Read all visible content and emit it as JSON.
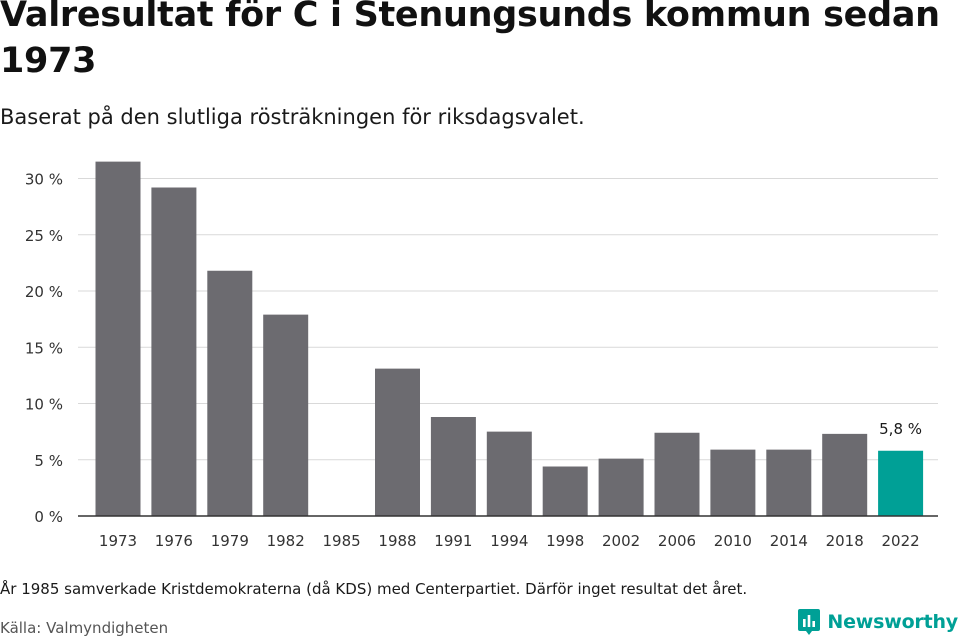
{
  "title": "Valresultat för C i Stenungsunds kommun sedan 1973",
  "subtitle": "Baserat på den slutliga rösträkningen för riksdagsvalet.",
  "note": "År 1985 samverkade Kristdemokraterna (då KDS) med Centerpartiet. Därför inget resultat det året.",
  "source": "Källa: Valmyndigheten",
  "brand": "Newsworthy",
  "chart_data": {
    "type": "bar",
    "categories": [
      "1973",
      "1976",
      "1979",
      "1982",
      "1985",
      "1988",
      "1991",
      "1994",
      "1998",
      "2002",
      "2006",
      "2010",
      "2014",
      "2018",
      "2022"
    ],
    "values": [
      31.5,
      29.2,
      21.8,
      17.9,
      null,
      13.1,
      8.8,
      7.5,
      4.4,
      5.1,
      7.4,
      5.9,
      5.9,
      7.3,
      5.8
    ],
    "yticks": [
      0,
      5,
      10,
      15,
      20,
      25,
      30
    ],
    "ytick_suffix": " %",
    "ylim": [
      0,
      32
    ],
    "highlight_index": 14,
    "highlight_label": "5,8 %",
    "colors": {
      "bar": "#6c6b70",
      "highlight": "#00a096",
      "grid": "#d9d9d9",
      "axis": "#333333"
    },
    "grid": true,
    "legend": false
  }
}
